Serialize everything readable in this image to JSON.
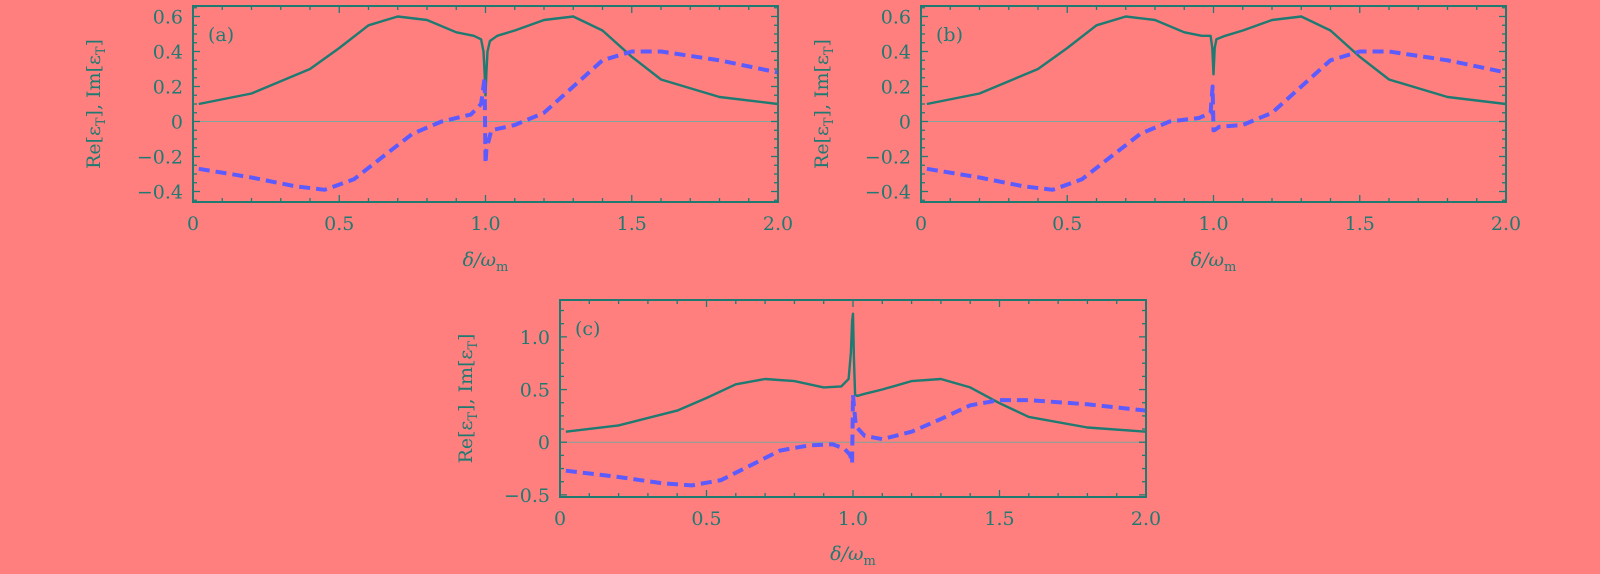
{
  "colors": {
    "background": "#ff7f7f",
    "axis": "#1f7a72",
    "real": "#1f7a72",
    "imag": "#5b5bff",
    "zero": "#7fa69c"
  },
  "chart_data": [
    {
      "type": "line",
      "panel_label": "(a)",
      "xlabel": "δ/ω",
      "xlabel_sub": "m",
      "ylabel": "Re[ε",
      "ylabel_sub": "T",
      "ylabel_mid": "], Im[ε",
      "ylabel_end": "]",
      "xlim": [
        0,
        2.0
      ],
      "ylim": [
        -0.46,
        0.66
      ],
      "xticks": [
        0,
        0.5,
        1.0,
        1.5,
        2.0
      ],
      "xtick_labels": [
        "0",
        "0.5",
        "1.0",
        "1.5",
        "2.0"
      ],
      "yticks": [
        0.6,
        0.4,
        0.2,
        0,
        -0.2,
        -0.4
      ],
      "ytick_labels": [
        "0.6",
        "0.4",
        "0.2",
        "0",
        "−0.2",
        "−0.4"
      ],
      "series": [
        {
          "name": "Re[εT]",
          "style": "solid",
          "x": [
            0.02,
            0.2,
            0.4,
            0.5,
            0.6,
            0.7,
            0.8,
            0.9,
            0.96,
            0.985,
            0.993,
            0.997,
            1.0,
            1.003,
            1.007,
            1.015,
            1.04,
            1.1,
            1.2,
            1.3,
            1.4,
            1.5,
            1.6,
            1.8,
            2.0
          ],
          "y": [
            0.1,
            0.16,
            0.3,
            0.42,
            0.55,
            0.6,
            0.58,
            0.51,
            0.49,
            0.47,
            0.4,
            0.28,
            0.15,
            0.28,
            0.4,
            0.46,
            0.49,
            0.52,
            0.58,
            0.6,
            0.52,
            0.37,
            0.24,
            0.14,
            0.1
          ]
        },
        {
          "name": "Im[εT]",
          "style": "dashed",
          "x": [
            0.02,
            0.2,
            0.35,
            0.45,
            0.55,
            0.65,
            0.75,
            0.85,
            0.95,
            0.985,
            0.997,
            1.0,
            1.003,
            1.02,
            1.1,
            1.2,
            1.3,
            1.4,
            1.5,
            1.6,
            1.8,
            2.0
          ],
          "y": [
            -0.27,
            -0.32,
            -0.37,
            -0.39,
            -0.33,
            -0.2,
            -0.07,
            0.0,
            0.04,
            0.1,
            0.25,
            -0.24,
            -0.16,
            -0.05,
            -0.02,
            0.05,
            0.2,
            0.35,
            0.4,
            0.4,
            0.35,
            0.28
          ]
        }
      ]
    },
    {
      "type": "line",
      "panel_label": "(b)",
      "xlabel": "δ/ω",
      "xlabel_sub": "m",
      "ylabel": "Re[ε",
      "ylabel_sub": "T",
      "ylabel_mid": "], Im[ε",
      "ylabel_end": "]",
      "xlim": [
        0,
        2.0
      ],
      "ylim": [
        -0.46,
        0.66
      ],
      "xticks": [
        0,
        0.5,
        1.0,
        1.5,
        2.0
      ],
      "xtick_labels": [
        "0",
        "0.5",
        "1.0",
        "1.5",
        "2.0"
      ],
      "yticks": [
        0.6,
        0.4,
        0.2,
        0,
        -0.2,
        -0.4
      ],
      "ytick_labels": [
        "0.6",
        "0.4",
        "0.2",
        "0",
        "−0.2",
        "−0.4"
      ],
      "series": [
        {
          "name": "Re[εT]",
          "style": "solid",
          "x": [
            0.02,
            0.2,
            0.4,
            0.5,
            0.6,
            0.7,
            0.8,
            0.9,
            0.96,
            0.99,
            0.996,
            1.0,
            1.004,
            1.01,
            1.04,
            1.1,
            1.2,
            1.3,
            1.4,
            1.5,
            1.6,
            1.8,
            2.0
          ],
          "y": [
            0.1,
            0.16,
            0.3,
            0.42,
            0.55,
            0.6,
            0.58,
            0.51,
            0.49,
            0.49,
            0.42,
            0.27,
            0.42,
            0.47,
            0.49,
            0.52,
            0.58,
            0.6,
            0.52,
            0.37,
            0.24,
            0.14,
            0.1
          ]
        },
        {
          "name": "Im[εT]",
          "style": "dashed",
          "x": [
            0.02,
            0.2,
            0.35,
            0.45,
            0.55,
            0.65,
            0.75,
            0.85,
            0.95,
            0.99,
            0.997,
            1.0,
            1.003,
            1.02,
            1.1,
            1.2,
            1.3,
            1.4,
            1.5,
            1.6,
            1.8,
            2.0
          ],
          "y": [
            -0.27,
            -0.32,
            -0.37,
            -0.39,
            -0.33,
            -0.2,
            -0.07,
            0.0,
            0.02,
            0.05,
            0.2,
            -0.05,
            -0.05,
            -0.03,
            -0.02,
            0.05,
            0.2,
            0.35,
            0.4,
            0.4,
            0.35,
            0.28
          ]
        }
      ]
    },
    {
      "type": "line",
      "panel_label": "(c)",
      "xlabel": "δ/ω",
      "xlabel_sub": "m",
      "ylabel": "Re[ε",
      "ylabel_sub": "T",
      "ylabel_mid": "], Im[ε",
      "ylabel_end": "]",
      "xlim": [
        0,
        2.0
      ],
      "ylim": [
        -0.52,
        1.35
      ],
      "xticks": [
        0,
        0.5,
        1.0,
        1.5,
        2.0
      ],
      "xtick_labels": [
        "0",
        "0.5",
        "1.0",
        "1.5",
        "2.0"
      ],
      "yticks": [
        1.0,
        0.5,
        0,
        -0.5
      ],
      "ytick_labels": [
        "1.0",
        "0.5",
        "0",
        "−0.5"
      ],
      "series": [
        {
          "name": "Re[εT]",
          "style": "solid",
          "x": [
            0.02,
            0.2,
            0.4,
            0.5,
            0.6,
            0.7,
            0.8,
            0.9,
            0.96,
            0.985,
            0.993,
            0.997,
            1.0,
            1.003,
            1.007,
            1.015,
            1.04,
            1.1,
            1.2,
            1.3,
            1.4,
            1.5,
            1.6,
            1.8,
            2.0
          ],
          "y": [
            0.1,
            0.16,
            0.3,
            0.42,
            0.55,
            0.6,
            0.58,
            0.52,
            0.53,
            0.6,
            0.85,
            1.15,
            1.22,
            0.8,
            0.45,
            0.44,
            0.46,
            0.5,
            0.58,
            0.6,
            0.52,
            0.37,
            0.24,
            0.14,
            0.1
          ]
        },
        {
          "name": "Im[εT]",
          "style": "dashed",
          "x": [
            0.02,
            0.2,
            0.35,
            0.45,
            0.55,
            0.65,
            0.75,
            0.85,
            0.93,
            0.97,
            0.99,
            0.997,
            1.0,
            1.003,
            1.01,
            1.04,
            1.1,
            1.2,
            1.3,
            1.4,
            1.5,
            1.6,
            1.8,
            2.0
          ],
          "y": [
            -0.27,
            -0.33,
            -0.39,
            -0.41,
            -0.36,
            -0.22,
            -0.08,
            -0.03,
            -0.02,
            -0.06,
            -0.12,
            -0.2,
            0.45,
            0.35,
            0.15,
            0.06,
            0.03,
            0.1,
            0.22,
            0.35,
            0.4,
            0.4,
            0.36,
            0.3
          ]
        }
      ]
    }
  ]
}
